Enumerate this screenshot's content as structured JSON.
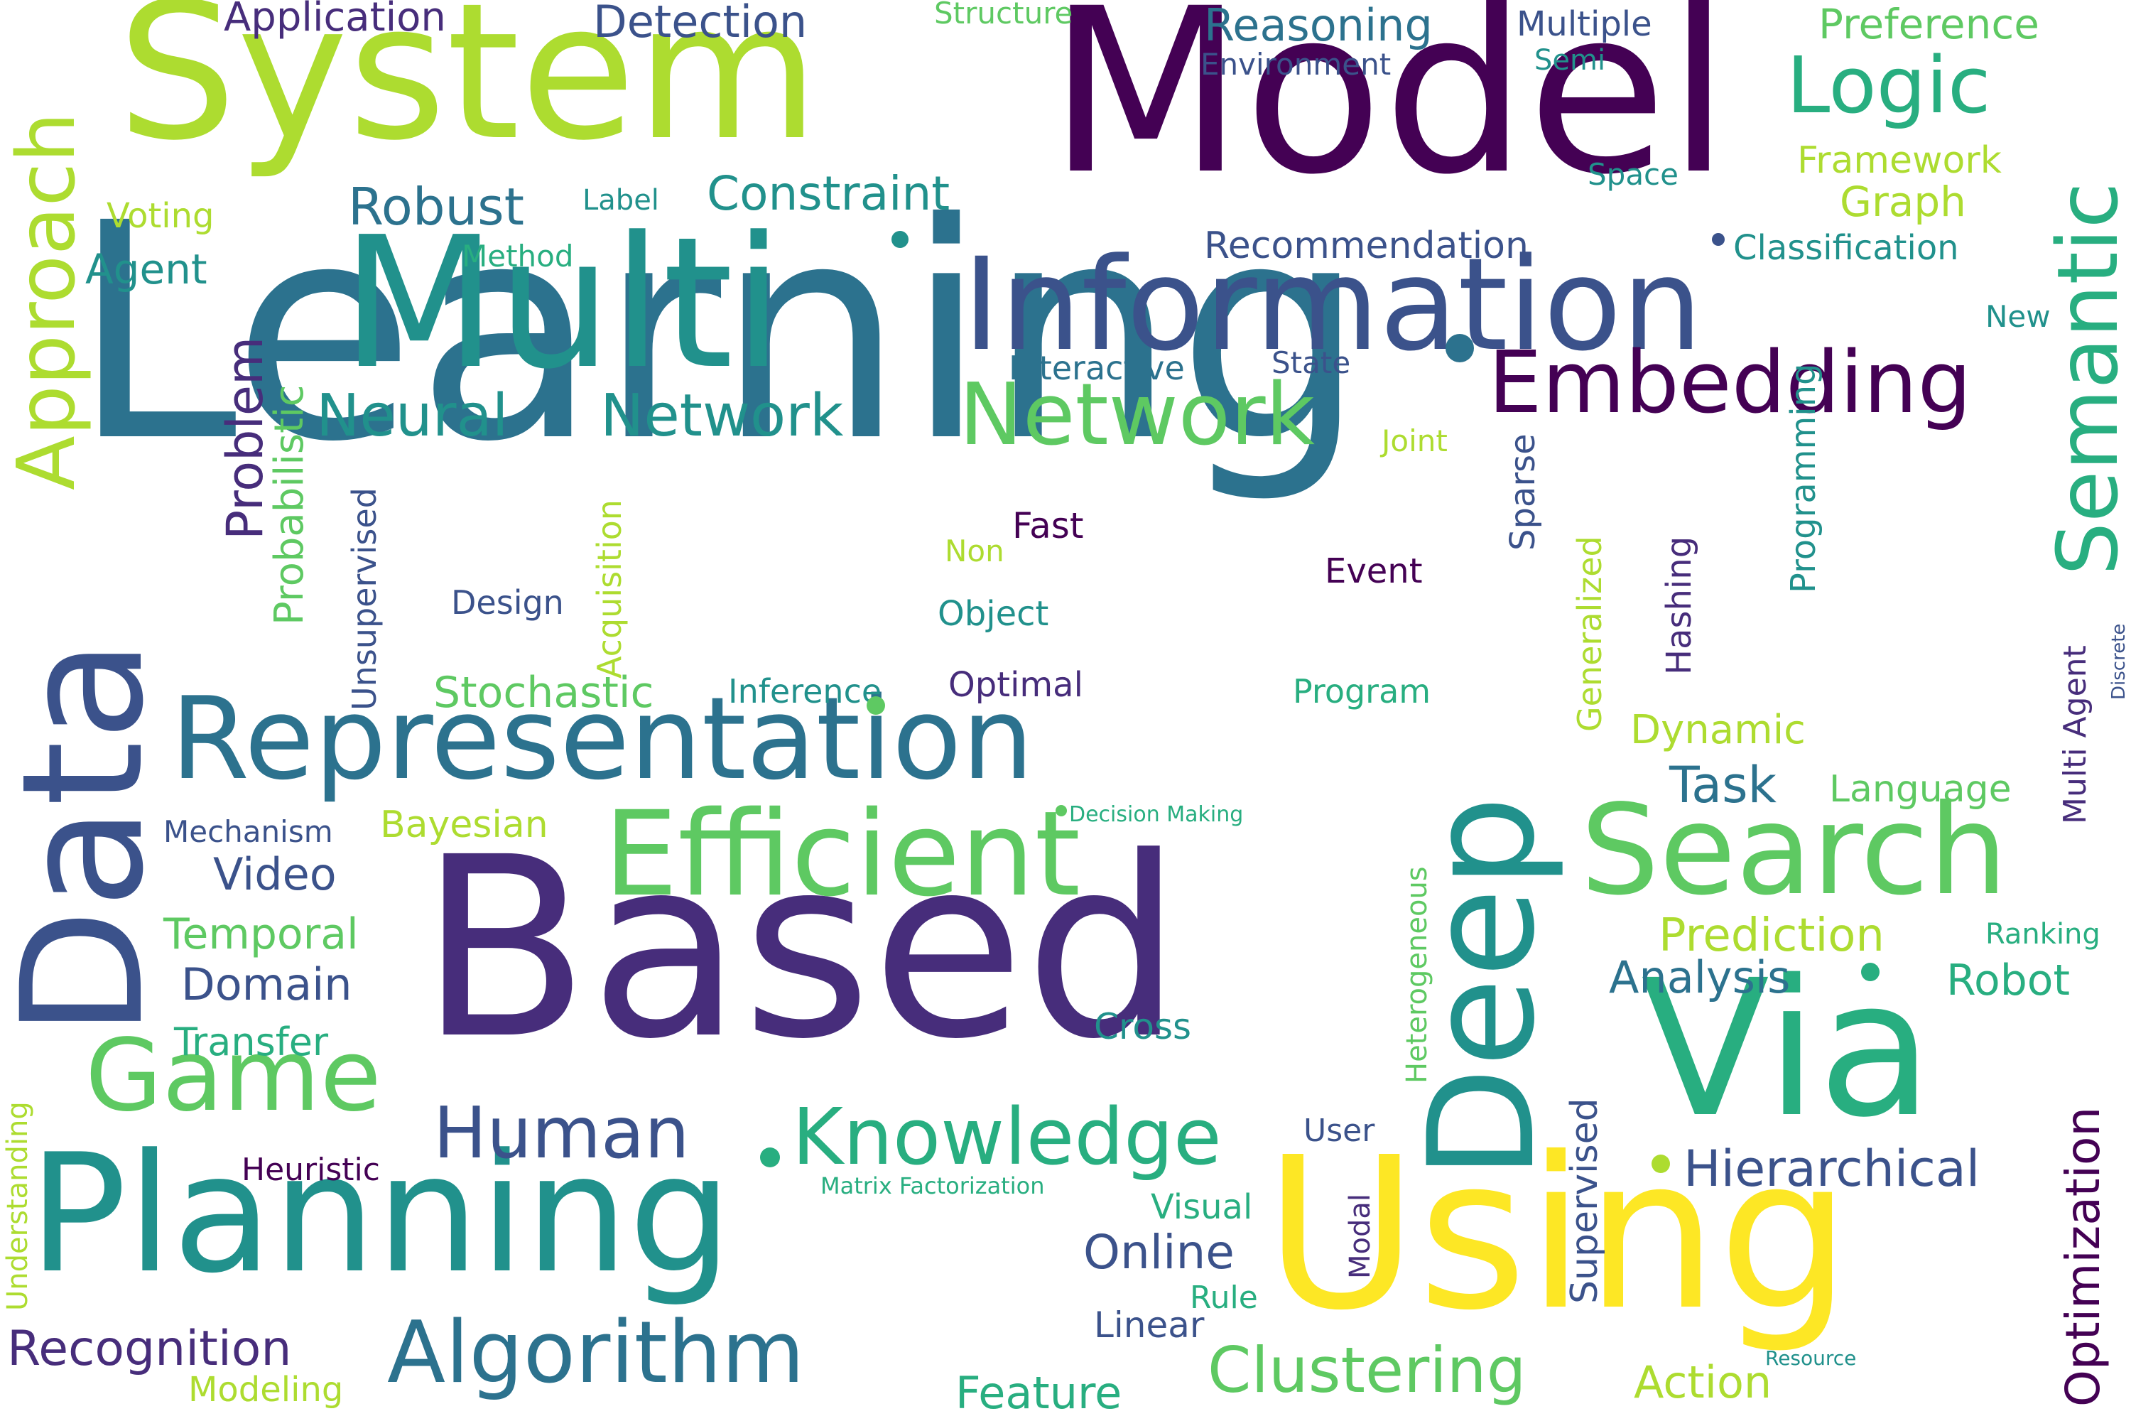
{
  "words": {
    "learning": "Learning",
    "model": "Model",
    "based": "Based",
    "system": "System",
    "multi": "Multi",
    "information": "Information",
    "data": "Data",
    "representation": "Representation",
    "planning": "Planning",
    "using": "Using",
    "deep": "Deep",
    "via": "Via",
    "efficient": "Efficient",
    "search": "Search",
    "algorithm": "Algorithm",
    "network_green": "Network",
    "embedding": "Embedding",
    "semantic": "Semantic",
    "game": "Game",
    "knowledge": "Knowledge",
    "approach": "Approach",
    "logic": "Logic",
    "human": "Human",
    "clustering": "Clustering",
    "hierarchical": "Hierarchical",
    "neural": "Neural",
    "network_teal": "Network",
    "robust": "Robust",
    "constraint": "Constraint",
    "reasoning": "Reasoning",
    "detection": "Detection",
    "application": "Application",
    "preference": "Preference",
    "recognition": "Recognition",
    "online": "Online",
    "optimization": "Optimization",
    "task": "Task",
    "prediction": "Prediction",
    "analysis": "Analysis",
    "robot": "Robot",
    "problem": "Problem",
    "stochastic": "Stochastic",
    "bayesian": "Bayesian",
    "video": "Video",
    "temporal": "Temporal",
    "domain": "Domain",
    "transfer": "Transfer",
    "feature": "Feature",
    "action": "Action",
    "dynamic": "Dynamic",
    "language": "Language",
    "multiple": "Multiple",
    "structure": "Structure",
    "environment": "Environment",
    "semi": "Semi",
    "framework": "Framework",
    "graph": "Graph",
    "space": "Space",
    "classification": "Classification",
    "new": "New",
    "recommendation": "Recommendation",
    "interactive": "Interactive",
    "state": "State",
    "joint": "Joint",
    "sparse": "Sparse",
    "generalized": "Generalized",
    "hashing": "Hashing",
    "programming": "Programming",
    "multi_agent": "Multi Agent",
    "discrete": "Discrete",
    "fast": "Fast",
    "non": "Non",
    "event": "Event",
    "design": "Design",
    "object": "Object",
    "inference": "Inference",
    "optimal": "Optimal",
    "program": "Program",
    "acquisition": "Acquisition",
    "unsupervised": "Unsupervised",
    "probabilistic": "Probabilistic",
    "method": "Method",
    "agent": "Agent",
    "voting": "Voting",
    "label": "Label",
    "mechanism": "Mechanism",
    "decision_making": "Decision Making",
    "heterogeneous": "Heterogeneous",
    "cross": "Cross",
    "user": "User",
    "visual": "Visual",
    "rule": "Rule",
    "linear": "Linear",
    "modal": "Modal",
    "supervised": "Supervised",
    "matrix_factorization": "Matrix Factorization",
    "heuristic": "Heuristic",
    "understanding": "Understanding",
    "modeling": "Modeling",
    "resource": "Resource",
    "ranking": "Ranking"
  },
  "palette": {
    "dark_purple": "#440154",
    "purple": "#472d7b",
    "indigo": "#3b528b",
    "blue": "#2c728e",
    "teal": "#21918c",
    "green_teal": "#28ae80",
    "green": "#5ec962",
    "lime": "#addc30",
    "yellow": "#fde725"
  }
}
